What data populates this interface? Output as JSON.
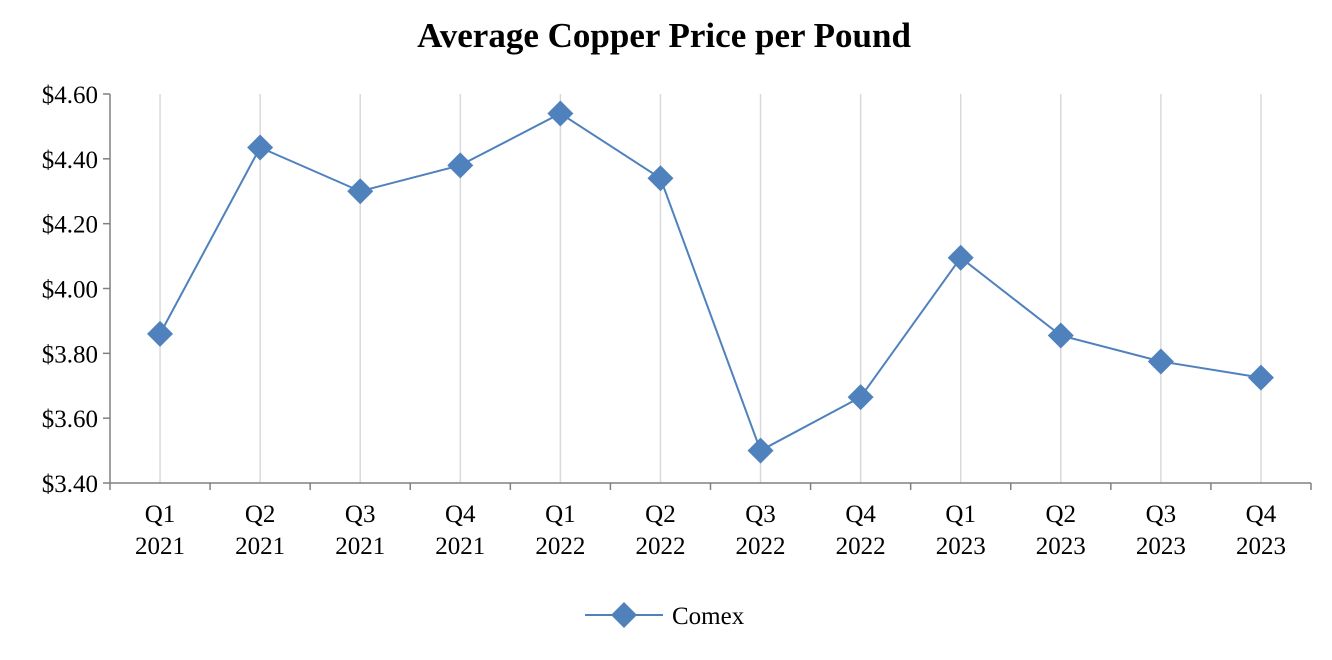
{
  "chart_data": {
    "type": "line",
    "title": "Average Copper Price per Pound",
    "categories": [
      [
        "Q1",
        "2021"
      ],
      [
        "Q2",
        "2021"
      ],
      [
        "Q3",
        "2021"
      ],
      [
        "Q4",
        "2021"
      ],
      [
        "Q1",
        "2022"
      ],
      [
        "Q2",
        "2022"
      ],
      [
        "Q3",
        "2022"
      ],
      [
        "Q4",
        "2022"
      ],
      [
        "Q1",
        "2023"
      ],
      [
        "Q2",
        "2023"
      ],
      [
        "Q3",
        "2023"
      ],
      [
        "Q4",
        "2023"
      ]
    ],
    "series": [
      {
        "name": "Comex",
        "color": "#4F81BD",
        "marker": "diamond",
        "values": [
          3.86,
          4.435,
          4.3,
          4.38,
          4.54,
          4.34,
          3.5,
          3.665,
          4.095,
          3.855,
          3.775,
          3.725
        ]
      }
    ],
    "ylim": [
      3.4,
      4.6
    ],
    "yticks": [
      3.4,
      3.6,
      3.8,
      4.0,
      4.2,
      4.4,
      4.6
    ],
    "ytick_labels": [
      "$3.40",
      "$3.60",
      "$3.80",
      "$4.00",
      "$4.20",
      "$4.40",
      "$4.60"
    ],
    "xlabel": "",
    "ylabel": "",
    "grid": "vertical",
    "legend": {
      "position": "bottom-center",
      "entries": [
        "Comex"
      ]
    }
  }
}
